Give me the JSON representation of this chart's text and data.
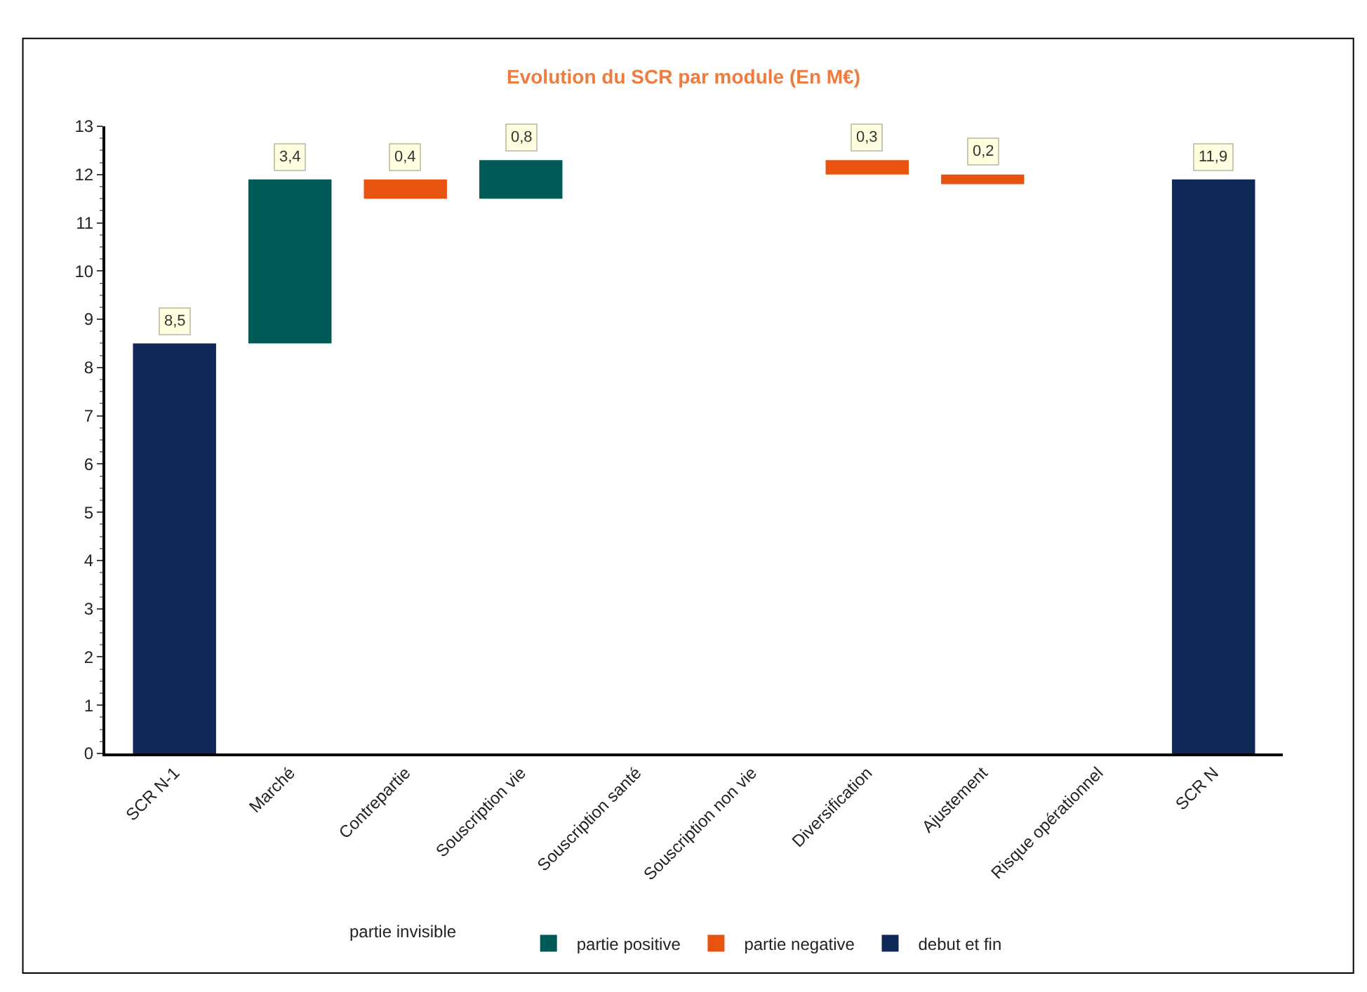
{
  "chart_data": {
    "type": "bar",
    "title": "Evolution du SCR par module (En M€)",
    "categories": [
      "SCR N-1",
      "Marché",
      "Contrepartie",
      "Souscription vie",
      "Souscription santé",
      "Souscription non vie",
      "Diversification",
      "Ajustement",
      "Risque opérationnel",
      "SCR N"
    ],
    "series": [
      {
        "name": "partie positive",
        "color": "#005a55",
        "values": [
          null,
          3.4,
          null,
          0.8,
          null,
          null,
          null,
          null,
          null,
          null
        ],
        "base": [
          null,
          8.5,
          null,
          11.5,
          null,
          null,
          null,
          null,
          null,
          null
        ],
        "value_labels": [
          null,
          "3,4",
          null,
          "0,8",
          null,
          null,
          null,
          null,
          null,
          null
        ]
      },
      {
        "name": "partie negative",
        "color": "#e8540f",
        "values": [
          null,
          null,
          0.4,
          null,
          null,
          null,
          0.3,
          0.2,
          null,
          null
        ],
        "base": [
          null,
          null,
          11.5,
          null,
          null,
          null,
          12.0,
          11.8,
          null,
          null
        ],
        "value_labels": [
          null,
          null,
          "0,4",
          null,
          null,
          null,
          "0,3",
          "0,2",
          null,
          null
        ]
      },
      {
        "name": "debut et fin",
        "color": "#0f2857",
        "values": [
          8.5,
          null,
          null,
          null,
          null,
          null,
          null,
          null,
          null,
          11.9
        ],
        "base": [
          0,
          null,
          null,
          null,
          null,
          null,
          null,
          null,
          null,
          0
        ],
        "value_labels": [
          "8,5",
          null,
          null,
          null,
          null,
          null,
          null,
          null,
          null,
          "11,9"
        ]
      }
    ],
    "annotations": [
      "partie invisible"
    ],
    "ylim": [
      0,
      13
    ],
    "yticks": [
      0,
      1,
      2,
      3,
      4,
      5,
      6,
      7,
      8,
      9,
      10,
      11,
      12,
      13
    ],
    "legend": "bottom"
  }
}
